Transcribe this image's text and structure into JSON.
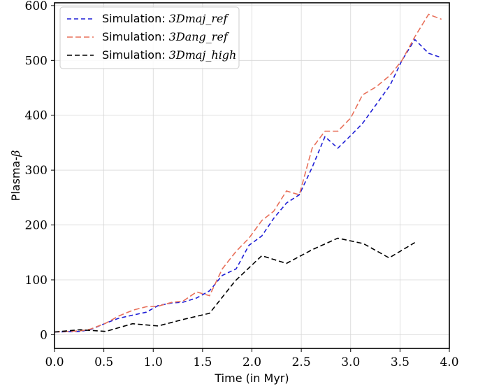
{
  "chart_data": {
    "type": "line",
    "xlabel": "Time (in Myr)",
    "ylabel_prefix": "Plasma-",
    "ylabel_symbol": "β",
    "xlim": [
      0.0,
      4.0
    ],
    "ylim": [
      -25,
      605
    ],
    "xticks": [
      0.0,
      0.5,
      1.0,
      1.5,
      2.0,
      2.5,
      3.0,
      3.5,
      4.0
    ],
    "xtick_labels": [
      "0.0",
      "0.5",
      "1.0",
      "1.5",
      "2.0",
      "2.5",
      "3.0",
      "3.5",
      "4.0"
    ],
    "yticks": [
      0,
      100,
      200,
      300,
      400,
      500,
      600
    ],
    "ytick_labels": [
      "0",
      "100",
      "200",
      "300",
      "400",
      "500",
      "600"
    ],
    "grid": true,
    "legend_position": "top-left",
    "series": [
      {
        "name_prefix": "Simulation: ",
        "name_math": "3Dmaj_ref",
        "color": "#1f1fd6",
        "dash": "6,4",
        "x": [
          0.0,
          0.26,
          0.36,
          0.52,
          0.65,
          0.8,
          0.93,
          1.05,
          1.19,
          1.3,
          1.44,
          1.57,
          1.7,
          1.84,
          1.97,
          2.1,
          2.22,
          2.35,
          2.48,
          2.61,
          2.74,
          2.87,
          3.0,
          3.12,
          3.26,
          3.4,
          3.52,
          3.65,
          3.79,
          3.92
        ],
        "y": [
          5,
          6,
          9,
          21,
          30,
          36,
          41,
          53,
          58,
          59,
          67,
          80,
          108,
          120,
          163,
          180,
          212,
          240,
          255,
          305,
          361,
          340,
          363,
          385,
          420,
          455,
          500,
          538,
          513,
          505
        ]
      },
      {
        "name_prefix": "Simulation: ",
        "name_math": "3Dang_ref",
        "color": "#e8705a",
        "dash": "8,4",
        "x": [
          0.0,
          0.26,
          0.36,
          0.52,
          0.65,
          0.8,
          0.93,
          1.05,
          1.19,
          1.3,
          1.44,
          1.57,
          1.7,
          1.84,
          1.97,
          2.1,
          2.22,
          2.35,
          2.48,
          2.61,
          2.74,
          2.87,
          3.0,
          3.12,
          3.26,
          3.4,
          3.52,
          3.65,
          3.79,
          3.92
        ],
        "y": [
          5,
          7,
          10,
          21,
          34,
          45,
          51,
          52,
          59,
          61,
          78,
          71,
          120,
          152,
          176,
          208,
          225,
          262,
          255,
          340,
          371,
          371,
          395,
          437,
          452,
          473,
          500,
          543,
          584,
          575
        ]
      },
      {
        "name_prefix": "Simulation: ",
        "name_math": "3Dmaj_high",
        "color": "#000000",
        "dash": "7,4",
        "x": [
          0.0,
          0.26,
          0.52,
          0.79,
          1.05,
          1.31,
          1.57,
          1.83,
          2.1,
          2.35,
          2.61,
          2.87,
          3.13,
          3.39,
          3.65
        ],
        "y": [
          5,
          9,
          6,
          20,
          16,
          28,
          39,
          98,
          144,
          130,
          155,
          176,
          166,
          140,
          168
        ]
      }
    ]
  }
}
